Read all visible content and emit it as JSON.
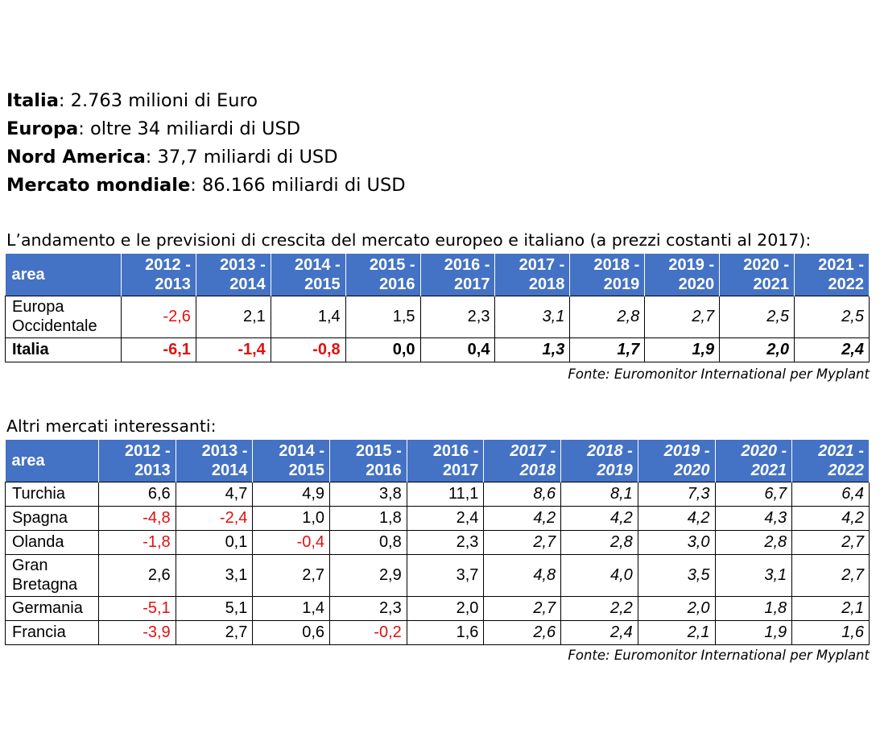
{
  "stats": [
    {
      "label": "Italia",
      "value": ": 2.763 milioni di Euro"
    },
    {
      "label": "Europa",
      "value": ": oltre 34 miliardi di USD"
    },
    {
      "label": "Nord America",
      "value": ": 37,7 miliardi di USD"
    },
    {
      "label": "Mercato mondiale",
      "value": ": 86.166 miliardi di USD"
    }
  ],
  "table1": {
    "caption": "L’andamento e le previsioni di crescita del mercato europeo e italiano (a prezzi costanti al 2017):",
    "header_area": "area",
    "periods": [
      [
        "2012 -",
        "2013"
      ],
      [
        "2013 -",
        "2014"
      ],
      [
        "2014 -",
        "2015"
      ],
      [
        "2015 -",
        "2016"
      ],
      [
        "2016 -",
        "2017"
      ],
      [
        "2017 -",
        "2018"
      ],
      [
        "2018 -",
        "2019"
      ],
      [
        "2019 -",
        "2020"
      ],
      [
        "2020 -",
        "2021"
      ],
      [
        "2021 -",
        "2022"
      ]
    ],
    "rows": [
      {
        "name": [
          "Europa",
          "Occidentale"
        ],
        "values": [
          "-2,6",
          "2,1",
          "1,4",
          "1,5",
          "2,3",
          "3,1",
          "2,8",
          "2,7",
          "2,5",
          "2,5"
        ],
        "bold": false
      },
      {
        "name": [
          "Italia"
        ],
        "values": [
          "-6,1",
          "-1,4",
          "-0,8",
          "0,0",
          "0,4",
          "1,3",
          "1,7",
          "1,9",
          "2,0",
          "2,4"
        ],
        "bold": true
      }
    ],
    "source": "Fonte: Euromonitor International per Myplant"
  },
  "table2": {
    "caption": "Altri mercati interessanti:",
    "header_area": "area",
    "periods": [
      [
        "2012 -",
        "2013"
      ],
      [
        "2013 -",
        "2014"
      ],
      [
        "2014 -",
        "2015"
      ],
      [
        "2015 -",
        "2016"
      ],
      [
        "2016 -",
        "2017"
      ],
      [
        "2017 -",
        "2018"
      ],
      [
        "2018 -",
        "2019"
      ],
      [
        "2019 -",
        "2020"
      ],
      [
        "2020 -",
        "2021"
      ],
      [
        "2021 -",
        "2022"
      ]
    ],
    "rows": [
      {
        "name": [
          "Turchia"
        ],
        "values": [
          "6,6",
          "4,7",
          "4,9",
          "3,8",
          "11,1",
          "8,6",
          "8,1",
          "7,3",
          "6,7",
          "6,4"
        ]
      },
      {
        "name": [
          "Spagna"
        ],
        "values": [
          "-4,8",
          "-2,4",
          "1,0",
          "1,8",
          "2,4",
          "4,2",
          "4,2",
          "4,2",
          "4,3",
          "4,2"
        ]
      },
      {
        "name": [
          "Olanda"
        ],
        "values": [
          "-1,8",
          "0,1",
          "-0,4",
          "0,8",
          "2,3",
          "2,7",
          "2,8",
          "3,0",
          "2,8",
          "2,7"
        ]
      },
      {
        "name": [
          "Gran",
          "Bretagna"
        ],
        "values": [
          "2,6",
          "3,1",
          "2,7",
          "2,9",
          "3,7",
          "4,8",
          "4,0",
          "3,5",
          "3,1",
          "2,7"
        ]
      },
      {
        "name": [
          "Germania"
        ],
        "values": [
          "-5,1",
          "5,1",
          "1,4",
          "2,3",
          "2,0",
          "2,7",
          "2,2",
          "2,0",
          "1,8",
          "2,1"
        ]
      },
      {
        "name": [
          "Francia"
        ],
        "values": [
          "-3,9",
          "2,7",
          "0,6",
          "-0,2",
          "1,6",
          "2,6",
          "2,4",
          "2,1",
          "1,9",
          "1,6"
        ]
      }
    ],
    "source": "Fonte: Euromonitor International per Myplant"
  },
  "colors": {
    "header": "#4472C4",
    "negative": "#e01010"
  }
}
